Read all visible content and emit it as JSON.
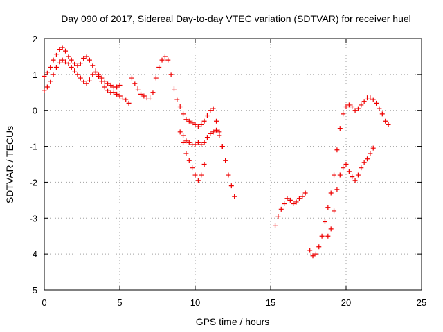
{
  "chart_data": {
    "type": "scatter",
    "title": "Day 090 of 2017, Sidereal Day-to-day VTEC variation (SDTVAR) for receiver huel",
    "xlabel": "GPS time / hours",
    "ylabel": "SDTVAR / TECUs",
    "xlim": [
      0,
      25
    ],
    "ylim": [
      -5,
      2
    ],
    "xticks": [
      0,
      5,
      10,
      15,
      20,
      25
    ],
    "yticks": [
      -5,
      -4,
      -3,
      -2,
      -1,
      0,
      1,
      2
    ],
    "grid": true,
    "marker": "+",
    "color": "#ee0000",
    "series": [
      {
        "x": [
          0.0,
          0.2,
          0.4,
          0.6,
          0.8,
          1.0,
          1.2,
          1.4,
          1.6,
          1.8,
          2.0,
          2.2,
          2.4,
          2.6,
          2.8,
          3.0,
          3.2,
          3.4,
          3.6,
          3.8,
          4.0,
          4.2,
          4.4,
          4.6,
          4.8,
          5.0
        ],
        "y": [
          0.95,
          1.05,
          1.2,
          1.4,
          1.55,
          1.7,
          1.75,
          1.65,
          1.5,
          1.4,
          1.3,
          1.25,
          1.3,
          1.45,
          1.5,
          1.4,
          1.25,
          1.1,
          1.0,
          0.9,
          0.8,
          0.75,
          0.7,
          0.65,
          0.65,
          0.7
        ]
      },
      {
        "x": [
          0.0,
          0.2,
          0.4,
          0.6,
          0.8,
          1.0,
          1.2,
          1.4,
          1.6,
          1.8,
          2.0,
          2.2,
          2.4,
          2.6,
          2.8,
          3.0,
          3.2,
          3.4,
          3.6,
          3.8,
          4.0,
          4.2,
          4.4,
          4.6,
          4.8,
          5.0,
          5.2,
          5.4,
          5.6
        ],
        "y": [
          0.55,
          0.65,
          0.8,
          1.0,
          1.2,
          1.35,
          1.4,
          1.35,
          1.3,
          1.2,
          1.1,
          1.0,
          0.9,
          0.8,
          0.75,
          0.85,
          1.0,
          1.05,
          0.95,
          0.8,
          0.65,
          0.55,
          0.5,
          0.5,
          0.45,
          0.4,
          0.35,
          0.3,
          0.2
        ]
      },
      {
        "x": [
          5.8,
          6.0,
          6.2,
          6.4,
          6.6,
          6.8,
          7.0,
          7.2,
          7.4,
          7.6,
          7.8,
          8.0,
          8.2,
          8.4,
          8.6,
          8.8,
          9.0,
          9.2,
          9.4,
          9.6,
          9.8,
          10.0,
          10.2,
          10.4,
          10.6,
          10.8,
          11.0,
          11.2,
          11.4,
          11.6,
          11.8,
          12.0,
          12.2,
          12.4,
          12.6
        ],
        "y": [
          0.9,
          0.75,
          0.6,
          0.45,
          0.4,
          0.35,
          0.35,
          0.5,
          0.9,
          1.2,
          1.4,
          1.5,
          1.4,
          1.0,
          0.6,
          0.3,
          0.1,
          -0.1,
          -0.25,
          -0.3,
          -0.35,
          -0.4,
          -0.45,
          -0.4,
          -0.3,
          -0.15,
          0.0,
          0.05,
          -0.3,
          -0.6,
          -1.0,
          -1.4,
          -1.8,
          -2.1,
          -2.4
        ]
      },
      {
        "x": [
          9.0,
          9.2,
          9.4,
          9.6,
          9.8,
          10.0,
          10.2,
          10.4,
          10.6,
          10.8,
          11.0,
          11.2,
          11.4,
          11.6,
          11.8
        ],
        "y": [
          -0.6,
          -0.7,
          -0.85,
          -0.9,
          -0.95,
          -0.95,
          -0.9,
          -0.95,
          -0.9,
          -0.75,
          -0.65,
          -0.6,
          -0.55,
          -0.7,
          -1.0
        ]
      },
      {
        "x": [
          9.2,
          9.4,
          9.6,
          9.8,
          10.0,
          10.2,
          10.4,
          10.6
        ],
        "y": [
          -0.9,
          -1.2,
          -1.4,
          -1.6,
          -1.8,
          -1.95,
          -1.8,
          -1.5
        ]
      },
      {
        "x": [
          15.3,
          15.5,
          15.7,
          15.9,
          16.1,
          16.3,
          16.5,
          16.7,
          16.9,
          17.1,
          17.3
        ],
        "y": [
          -3.2,
          -2.95,
          -2.75,
          -2.6,
          -2.45,
          -2.5,
          -2.6,
          -2.55,
          -2.45,
          -2.4,
          -2.3
        ]
      },
      {
        "x": [
          17.6,
          17.8,
          18.0,
          18.2,
          18.4,
          18.6,
          18.8,
          19.0,
          19.2,
          19.4,
          19.6,
          19.8,
          20.0,
          20.2,
          20.4,
          20.6,
          20.8,
          21.0,
          21.2,
          21.4,
          21.6,
          21.8,
          22.0,
          22.2,
          22.4,
          22.6,
          22.8
        ],
        "y": [
          -3.9,
          -4.05,
          -4.0,
          -3.8,
          -3.5,
          -3.1,
          -2.7,
          -2.3,
          -1.8,
          -1.1,
          -0.5,
          -0.1,
          0.1,
          0.15,
          0.1,
          0.0,
          0.05,
          0.15,
          0.25,
          0.35,
          0.35,
          0.3,
          0.2,
          0.05,
          -0.1,
          -0.3,
          -0.4
        ]
      },
      {
        "x": [
          18.8,
          19.0,
          19.2,
          19.4,
          19.6,
          19.8,
          20.0,
          20.2,
          20.4,
          20.6,
          20.8,
          21.0,
          21.2,
          21.4,
          21.6,
          21.8
        ],
        "y": [
          -3.5,
          -3.3,
          -2.8,
          -2.2,
          -1.8,
          -1.6,
          -1.5,
          -1.7,
          -1.85,
          -1.95,
          -1.8,
          -1.6,
          -1.45,
          -1.35,
          -1.2,
          -1.05
        ]
      }
    ]
  }
}
